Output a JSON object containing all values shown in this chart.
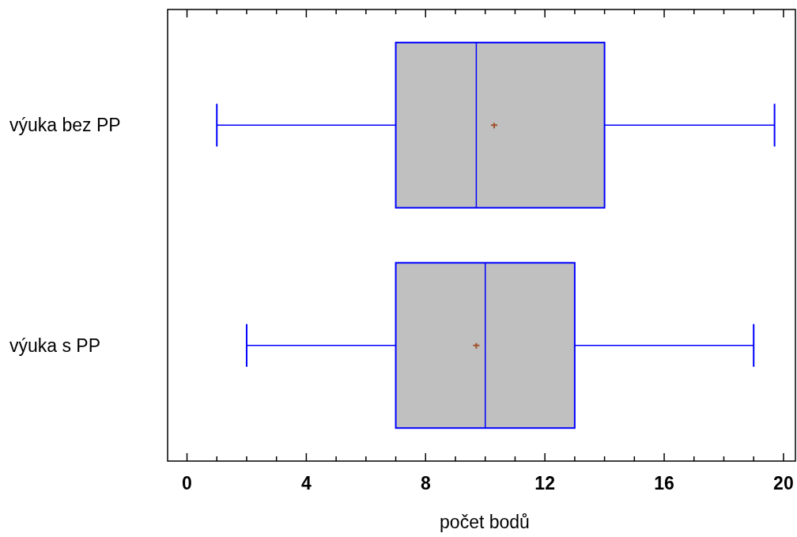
{
  "chart_data": {
    "type": "box",
    "orientation": "horizontal",
    "xlabel": "počet bodů",
    "categories": [
      "výuka bez PP",
      "výuka s PP"
    ],
    "color": "#c0c0c0",
    "boxes": [
      {
        "low": 1,
        "q1": 7,
        "median": 9.7,
        "q3": 14,
        "high": 19.7,
        "mean": 10.3
      },
      {
        "low": 2,
        "q1": 7,
        "median": 10,
        "q3": 13,
        "high": 19,
        "mean": 9.7
      }
    ],
    "xlim": [
      -0.65,
      20.4
    ],
    "xticks": [
      0,
      {
        "value": 1,
        "label": null
      },
      {
        "value": 2,
        "label": null
      },
      {
        "value": 3,
        "label": null
      },
      4,
      {
        "value": 5,
        "label": null
      },
      {
        "value": 6,
        "label": null
      },
      {
        "value": 7,
        "label": null
      },
      8,
      {
        "value": 9,
        "label": null
      },
      {
        "value": 10,
        "label": null
      },
      {
        "value": 11,
        "label": null
      },
      12,
      {
        "value": 13,
        "label": null
      },
      {
        "value": 14,
        "label": null
      },
      {
        "value": 15,
        "label": null
      },
      16,
      {
        "value": 17,
        "label": null
      },
      {
        "value": 18,
        "label": null
      },
      {
        "value": 19,
        "label": null
      },
      20
    ]
  }
}
